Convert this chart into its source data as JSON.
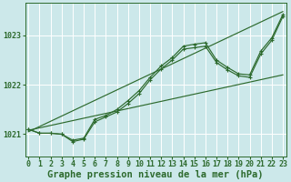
{
  "bg_color": "#cce8ea",
  "grid_color": "#ffffff",
  "line_color": "#2d6a2d",
  "xlabel": "Graphe pression niveau de la mer (hPa)",
  "xlabel_fontsize": 7.5,
  "tick_fontsize": 6.0,
  "ytick_labels": [
    1021,
    1022,
    1023
  ],
  "ylim": [
    1020.55,
    1023.65
  ],
  "xlim": [
    -0.3,
    23.3
  ],
  "xtick_labels": [
    0,
    1,
    2,
    3,
    4,
    5,
    6,
    7,
    8,
    9,
    10,
    11,
    12,
    13,
    14,
    15,
    16,
    17,
    18,
    19,
    20,
    21,
    22,
    23
  ],
  "series1_y": [
    1021.1,
    1021.02,
    1021.02,
    1021.0,
    1020.88,
    1020.92,
    1021.3,
    1021.38,
    1021.5,
    1021.68,
    1021.88,
    1022.15,
    1022.38,
    1022.55,
    1022.78,
    1022.82,
    1022.85,
    1022.5,
    1022.35,
    1022.22,
    1022.2,
    1022.68,
    1022.95,
    1023.42
  ],
  "series2_y": [
    1021.1,
    1021.02,
    1021.02,
    1021.0,
    1020.85,
    1020.9,
    1021.25,
    1021.35,
    1021.45,
    1021.62,
    1021.82,
    1022.1,
    1022.32,
    1022.5,
    1022.72,
    1022.75,
    1022.78,
    1022.45,
    1022.3,
    1022.18,
    1022.15,
    1022.62,
    1022.9,
    1023.38
  ],
  "trend1_x": [
    0,
    23
  ],
  "trend1_y": [
    1021.05,
    1023.48
  ],
  "trend2_x": [
    0,
    23
  ],
  "trend2_y": [
    1021.08,
    1022.2
  ]
}
